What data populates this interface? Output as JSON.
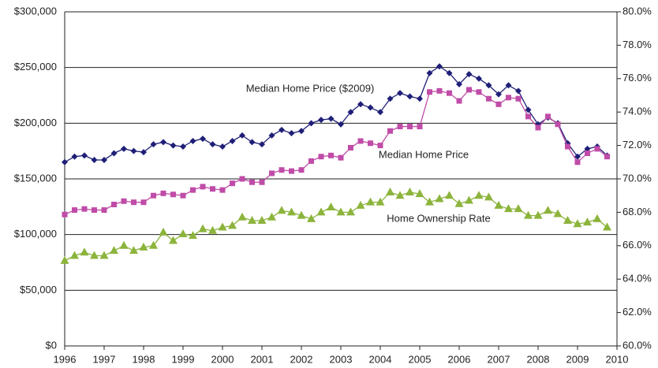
{
  "chart_data": {
    "type": "line",
    "x": [
      1996,
      1996.25,
      1996.5,
      1996.75,
      1997,
      1997.25,
      1997.5,
      1997.75,
      1998,
      1998.25,
      1998.5,
      1998.75,
      1999,
      1999.25,
      1999.5,
      1999.75,
      2000,
      2000.25,
      2000.5,
      2000.75,
      2001,
      2001.25,
      2001.5,
      2001.75,
      2002,
      2002.25,
      2002.5,
      2002.75,
      2003,
      2003.25,
      2003.5,
      2003.75,
      2004,
      2004.25,
      2004.5,
      2004.75,
      2005,
      2005.25,
      2005.5,
      2005.75,
      2006,
      2006.25,
      2006.5,
      2006.75,
      2007,
      2007.25,
      2007.5,
      2007.75,
      2008,
      2008.25,
      2008.5,
      2008.75,
      2009,
      2009.25,
      2009.5,
      2009.75
    ],
    "series": [
      {
        "name": "Median Home Price ($2009)",
        "color": "#1f1f78",
        "marker": "diamond",
        "values": [
          165000,
          170000,
          171000,
          167000,
          167000,
          173000,
          177000,
          175000,
          174000,
          181000,
          183000,
          180000,
          179000,
          184000,
          186000,
          181000,
          179000,
          184000,
          189000,
          183000,
          181000,
          189000,
          194000,
          191000,
          193000,
          200000,
          203000,
          204000,
          199000,
          210000,
          217000,
          214000,
          210000,
          222000,
          227000,
          224000,
          222000,
          245000,
          251000,
          245000,
          235000,
          244000,
          240000,
          234000,
          226000,
          234000,
          229000,
          212000,
          199000,
          205000,
          200000,
          182000,
          170000,
          177000,
          179000,
          171000
        ]
      },
      {
        "name": "Median Home Price",
        "color": "#c04ca8",
        "marker": "square",
        "values": [
          118000,
          122000,
          123000,
          122000,
          122000,
          127000,
          130000,
          129000,
          129000,
          135000,
          137000,
          136000,
          135000,
          140000,
          143000,
          141000,
          140000,
          146000,
          150000,
          147000,
          147000,
          155000,
          158000,
          157000,
          158000,
          166000,
          170000,
          171000,
          169000,
          178000,
          184000,
          182000,
          180000,
          193000,
          197000,
          197000,
          197000,
          228000,
          229000,
          227000,
          220000,
          230000,
          228000,
          222000,
          217000,
          223000,
          222000,
          206000,
          196000,
          206000,
          199000,
          179000,
          165000,
          173000,
          177000,
          170000
        ]
      },
      {
        "name": "Home Ownership Rate",
        "color": "#8cb43c",
        "marker": "triangle",
        "axis": "y2",
        "values": [
          65.1,
          65.4,
          65.6,
          65.4,
          65.4,
          65.7,
          66.0,
          65.7,
          65.9,
          66.0,
          66.8,
          66.3,
          66.7,
          66.6,
          67.0,
          66.9,
          67.1,
          67.2,
          67.7,
          67.5,
          67.5,
          67.7,
          68.1,
          68.0,
          67.8,
          67.6,
          68.0,
          68.3,
          68.0,
          68.0,
          68.4,
          68.6,
          68.6,
          69.2,
          69.0,
          69.2,
          69.1,
          68.6,
          68.8,
          69.0,
          68.5,
          68.7,
          69.0,
          68.9,
          68.4,
          68.2,
          68.2,
          67.8,
          67.8,
          68.1,
          67.9,
          67.5,
          67.3,
          67.4,
          67.6,
          67.1
        ]
      }
    ],
    "xlim": [
      1996,
      2010
    ],
    "xticks": [
      1996,
      1997,
      1998,
      1999,
      2000,
      2001,
      2002,
      2003,
      2004,
      2005,
      2006,
      2007,
      2008,
      2009,
      2010
    ],
    "ylim": [
      0,
      300000
    ],
    "yticks": [
      {
        "value": 0,
        "label": "$0"
      },
      {
        "value": 50000,
        "label": "$50,000"
      },
      {
        "value": 100000,
        "label": "$100,000"
      },
      {
        "value": 150000,
        "label": "$150,000"
      },
      {
        "value": 200000,
        "label": "$200,000"
      },
      {
        "value": 250000,
        "label": "$250,000"
      },
      {
        "value": 300000,
        "label": "$300,000"
      }
    ],
    "y2lim": [
      60,
      80
    ],
    "y2ticks": [
      {
        "value": 60,
        "label": "60.0%"
      },
      {
        "value": 62,
        "label": "62.0%"
      },
      {
        "value": 64,
        "label": "64.0%"
      },
      {
        "value": 66,
        "label": "66.0%"
      },
      {
        "value": 68,
        "label": "68.0%"
      },
      {
        "value": 70,
        "label": "70.0%"
      },
      {
        "value": 72,
        "label": "72.0%"
      },
      {
        "value": 74,
        "label": "74.0%"
      },
      {
        "value": 76,
        "label": "76.0%"
      },
      {
        "value": 78,
        "label": "78.0%"
      },
      {
        "value": 80,
        "label": "80.0%"
      }
    ],
    "grid": true
  }
}
